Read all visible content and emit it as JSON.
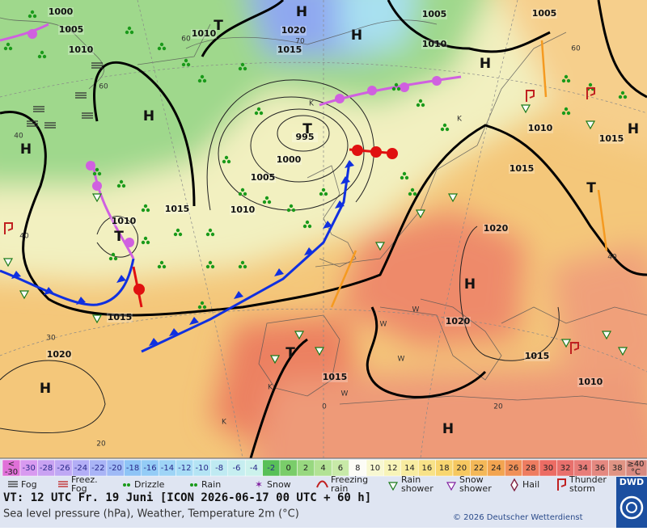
{
  "map": {
    "isobar_labels": [
      "1000",
      "1005",
      "1010",
      "1010",
      "1020",
      "1015",
      "1005",
      "1010",
      "1005",
      "995",
      "1000",
      "1005",
      "1010",
      "1015",
      "1010",
      "1015",
      "1020",
      "1010",
      "1015",
      "1015",
      "1020",
      "1020",
      "1015",
      "1010",
      "1015"
    ],
    "pressure_centers": [
      "H",
      "H",
      "H",
      "H",
      "H",
      "H",
      "H",
      "H",
      "H",
      "T",
      "T",
      "T",
      "T",
      "T"
    ],
    "isotherm_labels": [
      "40",
      "40",
      "60",
      "60",
      "60",
      "40",
      "30",
      "20",
      "0",
      "20",
      "70"
    ],
    "region_letters": [
      "K",
      "K",
      "W",
      "W",
      "W",
      "W",
      "K",
      "K"
    ]
  },
  "temperature_scale": {
    "below": "<",
    "below_value": "-30",
    "steps": [
      "-30",
      "-28",
      "-26",
      "-24",
      "-22",
      "-20",
      "-18",
      "-16",
      "-14",
      "-12",
      "-10",
      "-8",
      "-6",
      "-4",
      "-2",
      "0",
      "2",
      "4",
      "6",
      "8",
      "10",
      "12",
      "14",
      "16",
      "18",
      "20",
      "22",
      "24",
      "26",
      "28",
      "30",
      "32",
      "34",
      "36",
      "38"
    ],
    "colors": [
      "#d89af0",
      "#c9a2f2",
      "#bfa8f4",
      "#b3aef6",
      "#a9b4f6",
      "#9fbaf6",
      "#8ec4f6",
      "#94ccf6",
      "#9ed4f6",
      "#a8dcf6",
      "#b4e4f4",
      "#bfeaf2",
      "#c6eef0",
      "#ccf2ec",
      "#58c058",
      "#7acd6a",
      "#98d880",
      "#b2e294",
      "#c8eaa8",
      "#fcfcf6",
      "#f8f8d2",
      "#f8f4b8",
      "#f8eca0",
      "#f8e288",
      "#f8d670",
      "#f6c860",
      "#f4b858",
      "#f2a450",
      "#f09058",
      "#ee7c60",
      "#ec6c64",
      "#e8706c",
      "#e87c78",
      "#e48880",
      "#e09484"
    ],
    "lt_color": "#e070d8",
    "above": "≥40",
    "unit": "°C"
  },
  "symbols": [
    {
      "lines": [
        "Fog"
      ]
    },
    {
      "lines": [
        "Freez.",
        "Fog"
      ]
    },
    {
      "lines": [
        "Drizzle"
      ]
    },
    {
      "lines": [
        "Rain"
      ]
    },
    {
      "lines": [
        "Snow"
      ]
    },
    {
      "lines": [
        "Freezing",
        "rain"
      ]
    },
    {
      "lines": [
        "Rain",
        "shower"
      ]
    },
    {
      "lines": [
        "Snow",
        "shower"
      ]
    },
    {
      "lines": [
        "Hail"
      ]
    },
    {
      "lines": [
        "Thunder",
        "storm"
      ]
    }
  ],
  "footer": {
    "valid_time": "VT: 12 UTC Fr.  19 Juni [ICON 2026-06-17  00 UTC + 60 h]",
    "description": "Sea level pressure (hPa), Weather, Temperature 2m (°C)",
    "copyright": "© 2026 Deutscher Wetterdienst",
    "logo": "DWD"
  }
}
